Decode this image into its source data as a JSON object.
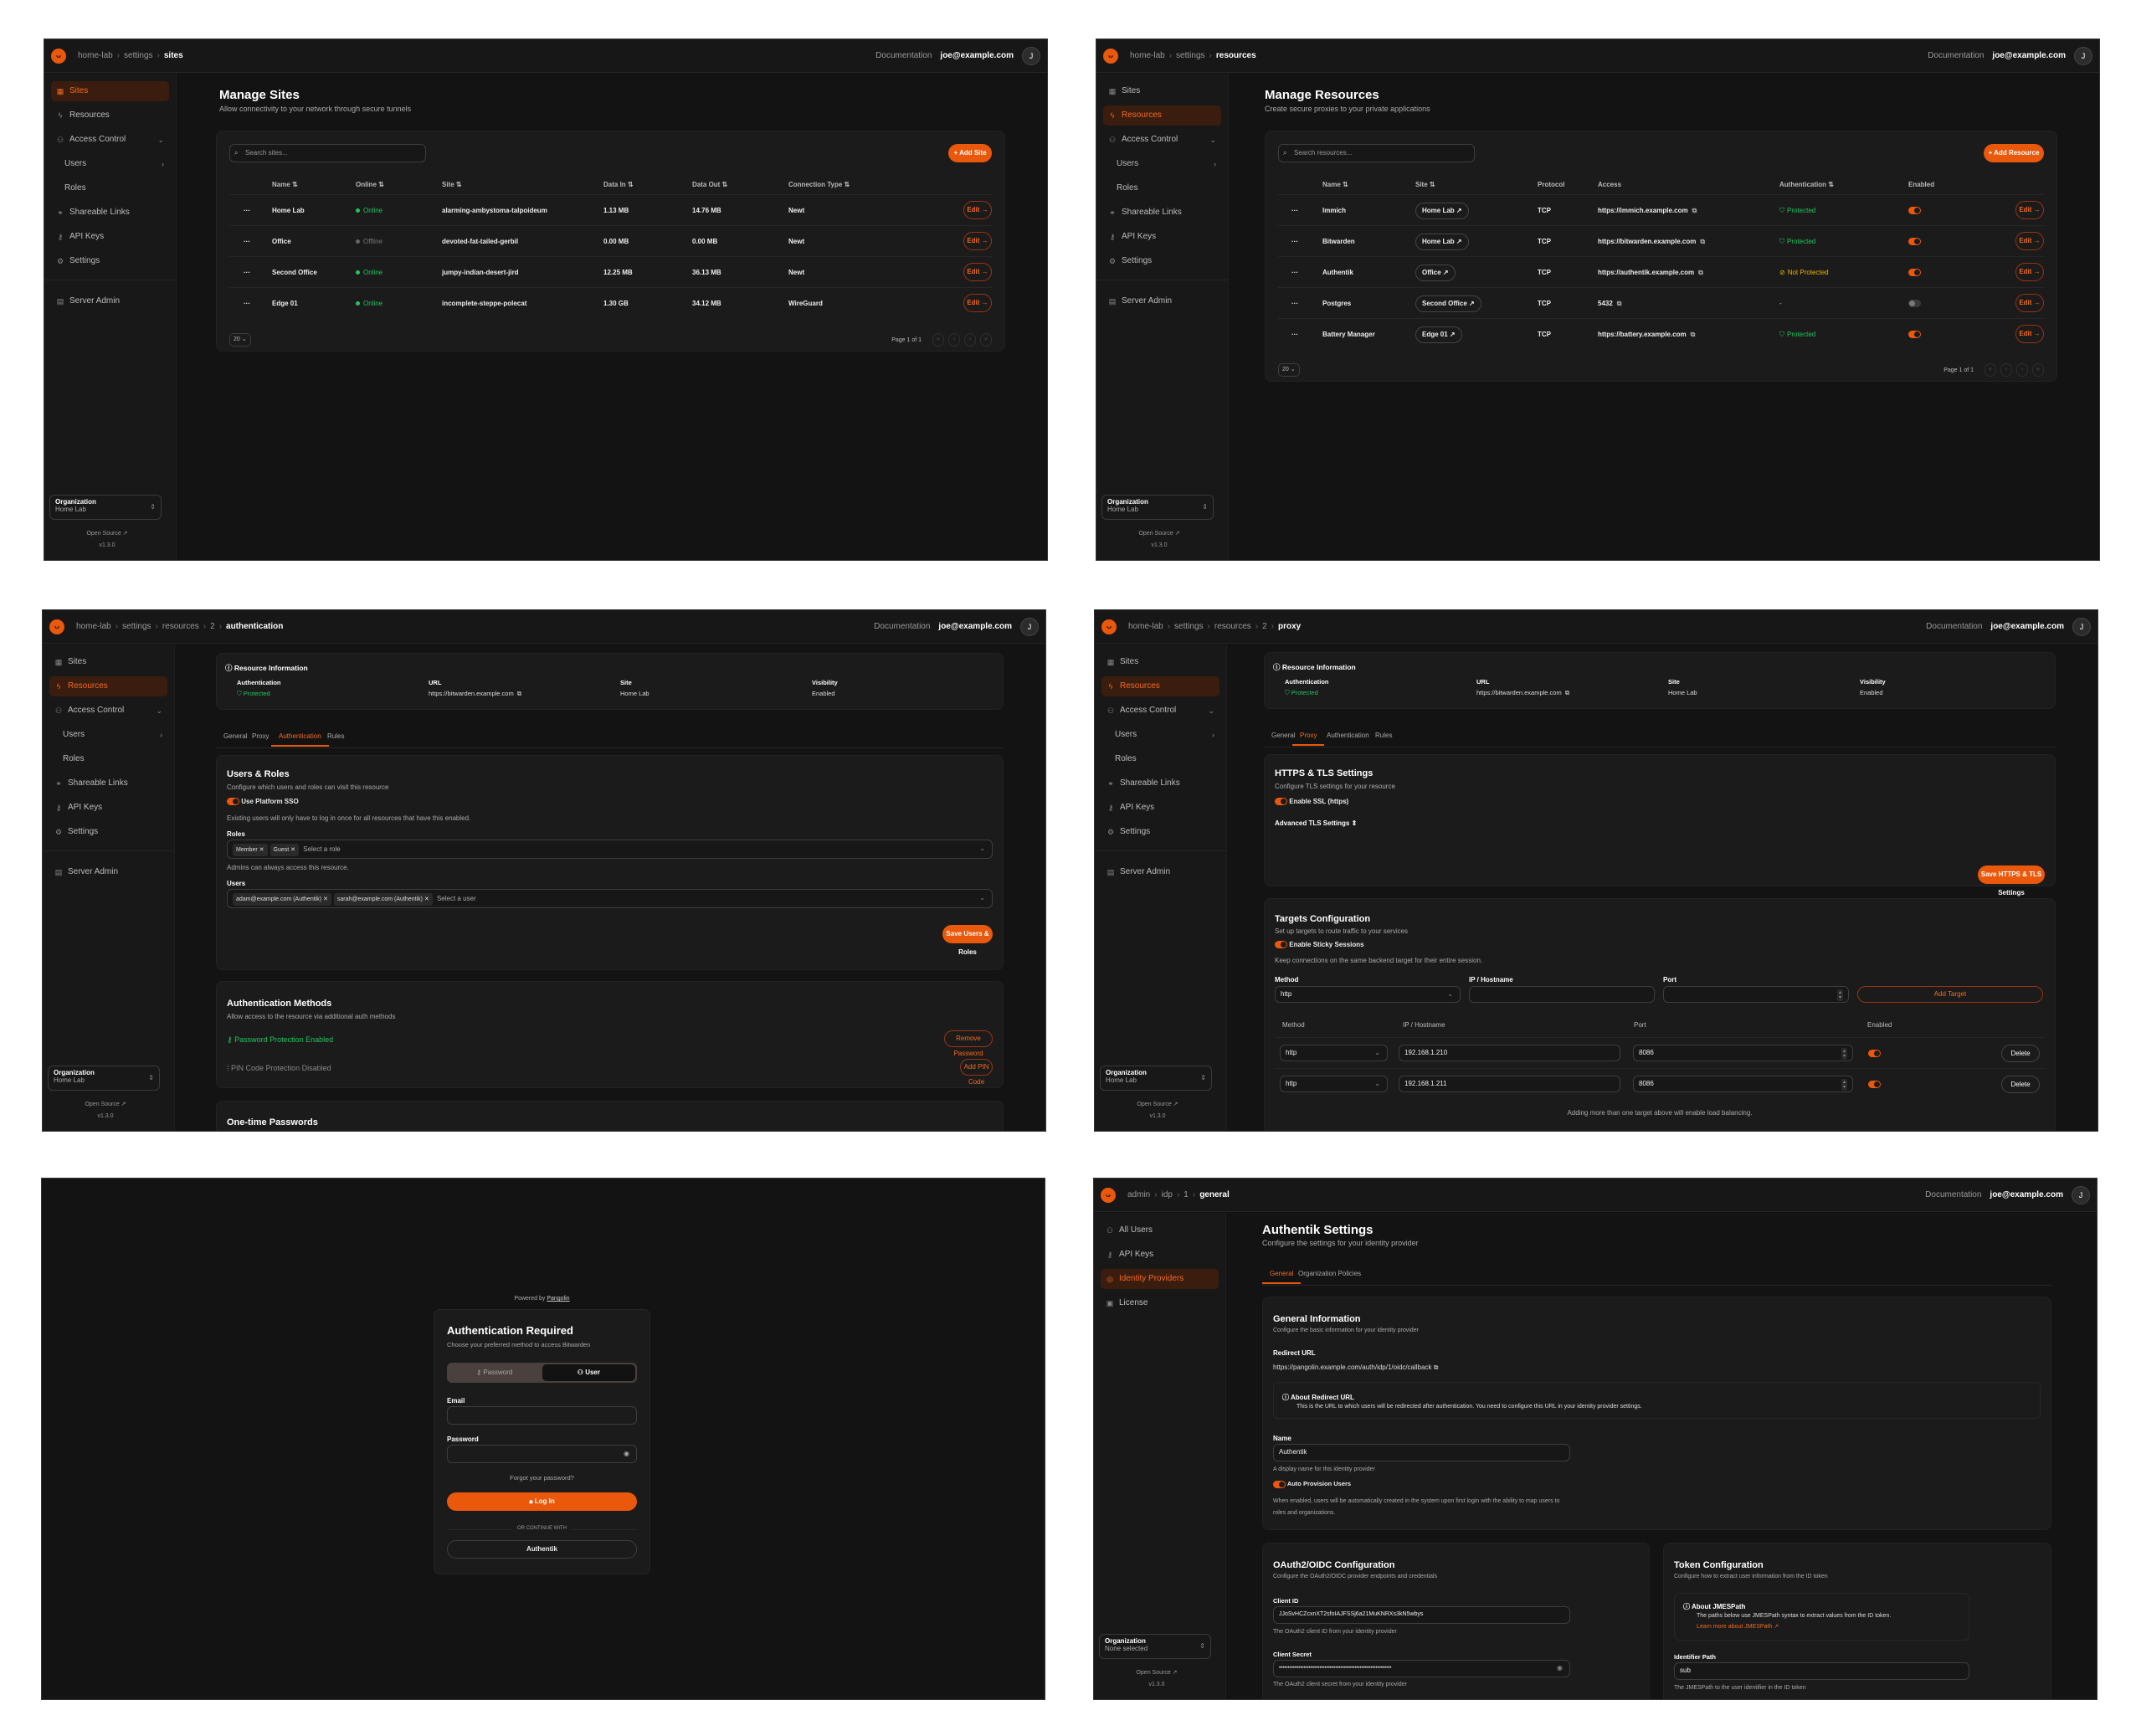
{
  "colors": {
    "accent": "#ea580c",
    "success": "#22c55e",
    "warning": "#eab308",
    "background": "#131313",
    "card": "#1b1b1b"
  },
  "common": {
    "documentation": "Documentation",
    "user_email": "joe@example.com",
    "avatar_initial": "J",
    "org_label": "Organization",
    "open_source": "Open Source ↗",
    "version": "v1.3.0",
    "org_sidebar": [
      {
        "label": "Sites",
        "icon": "sites-icon"
      },
      {
        "label": "Resources",
        "icon": "resources-icon"
      },
      {
        "label": "Access Control",
        "icon": "users-icon",
        "chevron": "down"
      },
      {
        "label": "Users",
        "indent": true,
        "chevron": "right"
      },
      {
        "label": "Roles",
        "indent": true
      },
      {
        "label": "Shareable Links",
        "icon": "link-icon"
      },
      {
        "label": "API Keys",
        "icon": "key-icon"
      },
      {
        "label": "Settings",
        "icon": "gear-icon"
      },
      {
        "label": "Server Admin",
        "icon": "server-icon",
        "divider_before": true
      }
    ]
  },
  "sites": {
    "breadcrumb": [
      "home-lab",
      "settings",
      "sites"
    ],
    "active_nav": "Sites",
    "org_name": "Home Lab",
    "title": "Manage Sites",
    "subtitle": "Allow connectivity to your network through secure tunnels",
    "search_placeholder": "Search sites...",
    "add_label": "+ Add Site",
    "columns": [
      "Name ⇅",
      "Online ⇅",
      "Site ⇅",
      "Data In ⇅",
      "Data Out ⇅",
      "Connection Type ⇅"
    ],
    "rows": [
      {
        "name": "Home Lab",
        "online": "Online",
        "site": "alarming-ambystoma-talpoideum",
        "data_in": "1.13 MB",
        "data_out": "14.76 MB",
        "type": "Newt"
      },
      {
        "name": "Office",
        "online": "Offline",
        "site": "devoted-fat-tailed-gerbil",
        "data_in": "0.00 MB",
        "data_out": "0.00 MB",
        "type": "Newt"
      },
      {
        "name": "Second Office",
        "online": "Online",
        "site": "jumpy-indian-desert-jird",
        "data_in": "12.25 MB",
        "data_out": "36.13 MB",
        "type": "Newt"
      },
      {
        "name": "Edge 01",
        "online": "Online",
        "site": "incomplete-steppe-polecat",
        "data_in": "1.30 GB",
        "data_out": "34.12 MB",
        "type": "WireGuard"
      }
    ],
    "edit_label": "Edit →",
    "page_size": "20",
    "page_text": "Page 1 of 1"
  },
  "resources": {
    "breadcrumb": [
      "home-lab",
      "settings",
      "resources"
    ],
    "active_nav": "Resources",
    "org_name": "Home Lab",
    "title": "Manage Resources",
    "subtitle": "Create secure proxies to your private applications",
    "search_placeholder": "Search resources...",
    "add_label": "+ Add Resource",
    "columns": [
      "Name ⇅",
      "Site ⇅",
      "Protocol",
      "Access",
      "Authentication ⇅",
      "Enabled"
    ],
    "rows": [
      {
        "name": "Immich",
        "site": "Home Lab ↗",
        "protocol": "TCP",
        "access": "https://immich.example.com",
        "auth": "Protected",
        "auth_state": "protected",
        "enabled": true
      },
      {
        "name": "Bitwarden",
        "site": "Home Lab ↗",
        "protocol": "TCP",
        "access": "https://bitwarden.example.com",
        "auth": "Protected",
        "auth_state": "protected",
        "enabled": true
      },
      {
        "name": "Authentik",
        "site": "Office ↗",
        "protocol": "TCP",
        "access": "https://authentik.example.com",
        "auth": "Not Protected",
        "auth_state": "not_protected",
        "enabled": true
      },
      {
        "name": "Postgres",
        "site": "Second Office ↗",
        "protocol": "TCP",
        "access": "5432",
        "auth": "-",
        "auth_state": "none",
        "enabled": false
      },
      {
        "name": "Battery Manager",
        "site": "Edge 01 ↗",
        "protocol": "TCP",
        "access": "https://battery.example.com",
        "auth": "Protected",
        "auth_state": "protected",
        "enabled": true
      }
    ],
    "edit_label": "Edit →",
    "page_size": "20",
    "page_text": "Page 1 of 1"
  },
  "resource_info": {
    "title": "Resource Information",
    "auth_label": "Authentication",
    "auth_value": "Protected",
    "url_label": "URL",
    "url_value": "https://bitwarden.example.com",
    "site_label": "Site",
    "site_value": "Home Lab",
    "visibility_label": "Visibility",
    "visibility_value": "Enabled",
    "tabs": [
      "General",
      "Proxy",
      "Authentication",
      "Rules"
    ]
  },
  "auth": {
    "breadcrumb": [
      "home-lab",
      "settings",
      "resources",
      "2",
      "authentication"
    ],
    "active_nav": "Resources",
    "org_name": "Home Lab",
    "active_tab": "Authentication",
    "users_roles": {
      "title": "Users & Roles",
      "subtitle": "Configure which users and roles can visit this resource",
      "sso_label": "Use Platform SSO",
      "sso_enabled": true,
      "sso_help": "Existing users will only have to log in once for all resources that have this enabled.",
      "roles_label": "Roles",
      "roles": [
        "Member",
        "Guest"
      ],
      "roles_placeholder": "Select a role",
      "roles_help": "Admins can always access this resource.",
      "users_label": "Users",
      "users": [
        "adam@example.com (Authentik)",
        "sarah@example.com (Authentik)"
      ],
      "users_placeholder": "Select a user",
      "save_label": "Save Users & Roles"
    },
    "methods": {
      "title": "Authentication Methods",
      "subtitle": "Allow access to the resource via additional auth methods",
      "password_status": "Password Protection Enabled",
      "password_button": "Remove Password",
      "pin_status": "PIN Code Protection Disabled",
      "pin_button": "Add PIN Code"
    },
    "otp_title": "One-time Passwords"
  },
  "proxy": {
    "breadcrumb": [
      "home-lab",
      "settings",
      "resources",
      "2",
      "proxy"
    ],
    "active_nav": "Resources",
    "org_name": "Home Lab",
    "active_tab": "Proxy",
    "tls": {
      "title": "HTTPS & TLS Settings",
      "subtitle": "Configure TLS settings for your resource",
      "ssl_label": "Enable SSL (https)",
      "ssl_enabled": true,
      "advanced_label": "Advanced TLS Settings ⇕",
      "save_label": "Save HTTPS & TLS Settings"
    },
    "targets": {
      "title": "Targets Configuration",
      "subtitle": "Set up targets to route traffic to your services",
      "sticky_label": "Enable Sticky Sessions",
      "sticky_enabled": true,
      "sticky_help": "Keep connections on the same backend target for their entire session.",
      "method_label": "Method",
      "ip_label": "IP / Hostname",
      "port_label": "Port",
      "method_value": "http",
      "add_label": "Add Target",
      "columns": [
        "Method",
        "IP / Hostname",
        "Port",
        "Enabled"
      ],
      "rows": [
        {
          "method": "http",
          "ip": "192.168.1.210",
          "port": "8086",
          "enabled": true
        },
        {
          "method": "http",
          "ip": "192.168.1.211",
          "port": "8086",
          "enabled": true
        }
      ],
      "delete_label": "Delete",
      "footer": "Adding more than one target above will enable load balancing."
    }
  },
  "login": {
    "powered_by": "Powered by",
    "powered_link": "Pangolin",
    "title": "Authentication Required",
    "subtitle": "Choose your preferred method to access Bitwarden",
    "tab_password": "Password",
    "tab_user": "User",
    "active_tab": "User",
    "email_label": "Email",
    "password_label": "Password",
    "forgot": "Forgot your password?",
    "login_button": "Log In",
    "divider": "OR CONTINUE WITH",
    "sso_button": "Authentik"
  },
  "idp": {
    "breadcrumb": [
      "admin",
      "idp",
      "1",
      "general"
    ],
    "sidebar": [
      {
        "label": "All Users",
        "icon": "users-icon"
      },
      {
        "label": "API Keys",
        "icon": "key-icon"
      },
      {
        "label": "Identity Providers",
        "icon": "fingerprint-icon"
      },
      {
        "label": "License",
        "icon": "license-icon"
      }
    ],
    "active_nav": "Identity Providers",
    "org_name": "None selected",
    "title": "Authentik Settings",
    "subtitle": "Configure the settings for your identity provider",
    "tabs": [
      "General",
      "Organization Policies"
    ],
    "active_tab": "General",
    "general": {
      "title": "General Information",
      "subtitle": "Configure the basic information for your identity provider",
      "redirect_label": "Redirect URL",
      "redirect_value": "https://pangolin.example.com/auth/idp/1/oidc/callback",
      "about_title": "About Redirect URL",
      "about_text": "This is the URL to which users will be redirected after authentication. You need to configure this URL in your identity provider settings.",
      "name_label": "Name",
      "name_value": "Authentik",
      "name_help": "A display name for this identity provider",
      "auto_label": "Auto Provision Users",
      "auto_enabled": true,
      "auto_help": "When enabled, users will be automatically created in the system upon first login with the ability to map users to roles and organizations."
    },
    "oauth": {
      "title": "OAuth2/OIDC Configuration",
      "subtitle": "Configure the OAuth2/OIDC provider endpoints and credentials",
      "client_id_label": "Client ID",
      "client_id_value": "JJoSvHCZcxnXT2sfoIAJFSSj6a21MuKNRXs3kN5wbys",
      "client_id_help": "The OAuth2 client ID from your identity provider",
      "secret_label": "Client Secret",
      "secret_value": "••••••••••••••••••••••••••••••••••••••••••••••••••••••••••••••••",
      "secret_help": "The OAuth2 client secret from your identity provider"
    },
    "token": {
      "title": "Token Configuration",
      "subtitle": "Configure how to extract user information from the ID token",
      "about_title": "About JMESPath",
      "about_text": "The paths below use JMESPath syntax to extract values from the ID token.",
      "about_link": "Learn more about JMESPath ↗",
      "identifier_label": "Identifier Path",
      "identifier_value": "sub",
      "identifier_help": "The JMESPath to the user identifier in the ID token"
    }
  }
}
